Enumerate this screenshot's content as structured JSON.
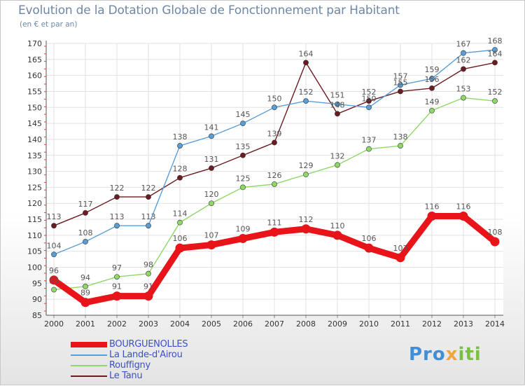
{
  "title": "Evolution de la Dotation Globale de Fonctionnement par Habitant",
  "subtitle": "(en € et par an)",
  "logo": {
    "p1": "Pro",
    "p2": "x",
    "p3": "iti"
  },
  "chart_data": {
    "type": "line",
    "x": [
      "2000",
      "2001",
      "2002",
      "2003",
      "2004",
      "2005",
      "2006",
      "2007",
      "2008",
      "2009",
      "2010",
      "2011",
      "2012",
      "2013",
      "2014"
    ],
    "ylim": [
      85,
      170
    ],
    "yticks": [
      85,
      90,
      95,
      100,
      105,
      110,
      115,
      120,
      125,
      130,
      135,
      140,
      145,
      150,
      155,
      160,
      165,
      170
    ],
    "grid": true,
    "legend_position": "bottom-left",
    "series": [
      {
        "name": "BOURGUENOLLES",
        "color": "#e8141a",
        "values": [
          96,
          89,
          91,
          91,
          106,
          107,
          109,
          111,
          112,
          110,
          106,
          103,
          116,
          116,
          108
        ]
      },
      {
        "name": "La Lande-d'Airou",
        "color": "#5a9ed6",
        "values": [
          104,
          108,
          113,
          113,
          138,
          141,
          145,
          150,
          152,
          151,
          150,
          157,
          159,
          167,
          168
        ]
      },
      {
        "name": "Rouffigny",
        "color": "#8fd867",
        "values": [
          93,
          94,
          97,
          98,
          114,
          120,
          125,
          126,
          129,
          132,
          137,
          138,
          149,
          153,
          152
        ]
      },
      {
        "name": "Le Tanu",
        "color": "#6b1b22",
        "values": [
          113,
          117,
          122,
          122,
          128,
          131,
          135,
          139,
          164,
          148,
          152,
          155,
          156,
          162,
          164
        ]
      }
    ]
  }
}
